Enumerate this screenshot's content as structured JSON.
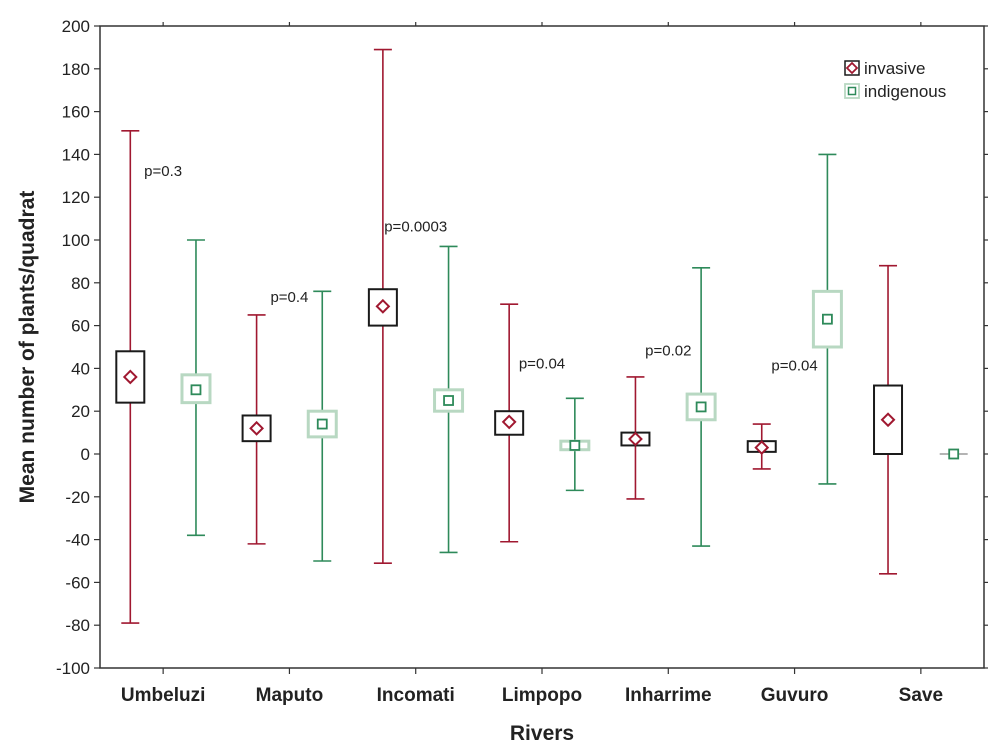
{
  "chart_data": {
    "type": "box",
    "xlabel": "Rivers",
    "ylabel": "Mean number of plants/quadrat",
    "ylim": [
      -100,
      200
    ],
    "yticks": [
      -100,
      -80,
      -60,
      -40,
      -20,
      0,
      20,
      40,
      60,
      80,
      100,
      120,
      140,
      160,
      180,
      200
    ],
    "categories": [
      "Umbeluzi",
      "Maputo",
      "Incomati",
      "Limpopo",
      "Inharrime",
      "Guvuro",
      "Save"
    ],
    "legend": {
      "placement": "top-right"
    },
    "series": [
      {
        "name": "invasive",
        "color": "#a01830",
        "marker": "diamond",
        "mean": [
          36,
          12,
          69,
          15,
          7,
          3,
          16
        ],
        "box_low": [
          24,
          6,
          60,
          9,
          4,
          1,
          0
        ],
        "box_high": [
          48,
          18,
          77,
          20,
          10,
          6,
          32
        ],
        "whisk_low": [
          -79,
          -42,
          -51,
          -41,
          -21,
          -7,
          -56
        ],
        "whisk_high": [
          151,
          65,
          189,
          70,
          36,
          14,
          88
        ]
      },
      {
        "name": "indigenous",
        "color": "#2e8a5a",
        "marker": "square",
        "mean": [
          30,
          14,
          25,
          4,
          22,
          63,
          0
        ],
        "box_low": [
          24,
          8,
          20,
          2,
          16,
          50,
          0
        ],
        "box_high": [
          37,
          20,
          30,
          6,
          28,
          76,
          0
        ],
        "whisk_low": [
          -38,
          -50,
          -46,
          -17,
          -43,
          -14,
          0
        ],
        "whisk_high": [
          100,
          76,
          97,
          26,
          87,
          140,
          0
        ]
      }
    ],
    "annotations": [
      {
        "text": "p=0.3",
        "x": "Umbeluzi",
        "y": 130
      },
      {
        "text": "p=0.4",
        "x": "Maputo",
        "y": 71
      },
      {
        "text": "p=0.0003",
        "x": "Incomati",
        "y": 104
      },
      {
        "text": "p=0.04",
        "x": "Limpopo",
        "y": 40
      },
      {
        "text": "p=0.02",
        "x": "Inharrime",
        "y": 46
      },
      {
        "text": "p=0.04",
        "x": "Guvuro",
        "y": 39
      }
    ]
  }
}
